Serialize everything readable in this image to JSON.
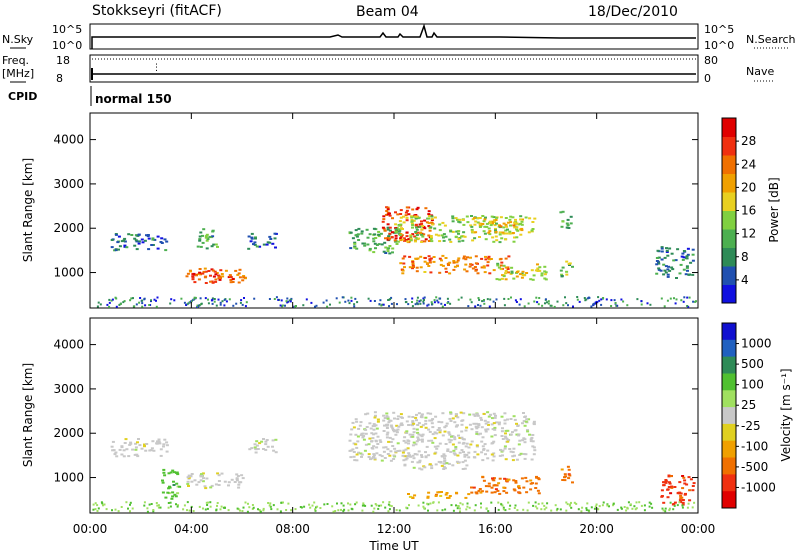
{
  "header": {
    "station": "Stokkseyri (fitACF)",
    "beam": "Beam 04",
    "date": "18/Dec/2010"
  },
  "strip": {
    "nsky_label": "N.Sky",
    "nsky_ticks": [
      "10^5",
      "10^0"
    ],
    "nsearch_label": "N.Search",
    "nsearch_ticks": [
      "10^5",
      "10^0"
    ],
    "freq_label_1": "Freq.",
    "freq_label_2": "[MHz]",
    "freq_ticks": [
      "18",
      "8"
    ],
    "nave_label": "Nave",
    "nave_ticks": [
      "80",
      "0"
    ],
    "cpid_label": "CPID",
    "cpid_value": "normal 150"
  },
  "colors": {
    "power_scale": [
      "#1010e0",
      "#2050b0",
      "#2e8b57",
      "#4caf50",
      "#80d040",
      "#e8d020",
      "#f0a000",
      "#f07000",
      "#f03010",
      "#e00000"
    ],
    "velocity_scale": [
      "#1010d0",
      "#2060c0",
      "#2e8b57",
      "#50c030",
      "#a0e060",
      "#c8c8c8",
      "#e0d020",
      "#f0a000",
      "#f07000",
      "#f03010",
      "#e00000"
    ]
  },
  "chart_data": [
    {
      "type": "heatmap",
      "panel": "power",
      "ylabel": "Slant Range [km]",
      "yticks": [
        "1000",
        "2000",
        "3000",
        "4000"
      ],
      "ylim": [
        200,
        4600
      ],
      "colorbar_label": "Power [dB]",
      "colorbar_ticks": [
        "4",
        "8",
        "12",
        "16",
        "20",
        "24",
        "28"
      ],
      "colorbar_range": [
        0,
        31
      ],
      "blobs": [
        {
          "t0": 0.8,
          "t1": 3.0,
          "r0": 1500,
          "r1": 1900,
          "v": 5
        },
        {
          "t0": 3.7,
          "t1": 6.1,
          "r0": 780,
          "r1": 1120,
          "v": 25
        },
        {
          "t0": 4.0,
          "t1": 5.6,
          "r0": 850,
          "r1": 1020,
          "v": 30
        },
        {
          "t0": 4.2,
          "t1": 5.0,
          "r0": 1500,
          "r1": 2000,
          "v": 10
        },
        {
          "t0": 6.2,
          "t1": 7.3,
          "r0": 1550,
          "r1": 1900,
          "v": 4
        },
        {
          "t0": 10.2,
          "t1": 12.2,
          "r0": 1450,
          "r1": 2050,
          "v": 10
        },
        {
          "t0": 11.5,
          "t1": 13.5,
          "r0": 1700,
          "r1": 2500,
          "v": 28
        },
        {
          "t0": 12.2,
          "t1": 16.5,
          "r0": 1000,
          "r1": 1400,
          "v": 24
        },
        {
          "t0": 12.0,
          "t1": 17.0,
          "r0": 1700,
          "r1": 2300,
          "v": 14
        },
        {
          "t0": 15.0,
          "t1": 17.5,
          "r0": 1900,
          "r1": 2300,
          "v": 18
        },
        {
          "t0": 16.0,
          "t1": 18.0,
          "r0": 850,
          "r1": 1250,
          "v": 16
        },
        {
          "t0": 18.5,
          "t1": 19.0,
          "r0": 2000,
          "r1": 2400,
          "v": 10
        },
        {
          "t0": 18.5,
          "t1": 19.0,
          "r0": 900,
          "r1": 1300,
          "v": 12
        },
        {
          "t0": 22.3,
          "t1": 23.8,
          "r0": 900,
          "r1": 1600,
          "v": 6
        }
      ]
    },
    {
      "type": "heatmap",
      "panel": "velocity",
      "ylabel": "Slant Range [km]",
      "yticks": [
        "1000",
        "2000",
        "3000",
        "4000"
      ],
      "ylim": [
        200,
        4600
      ],
      "colorbar_label": "Velocity [m s⁻¹]",
      "colorbar_ticks": [
        "1000",
        "500",
        "100",
        "25",
        "-25",
        "-100",
        "-500",
        "-1000"
      ],
      "xlabel": "Time UT",
      "xticks": [
        "00:00",
        "04:00",
        "08:00",
        "12:00",
        "16:00",
        "20:00",
        "00:00"
      ],
      "xlim": [
        0,
        24
      ],
      "blobs": [
        {
          "t0": 0.8,
          "t1": 3.0,
          "r0": 1500,
          "r1": 1900,
          "c": 5
        },
        {
          "t0": 3.7,
          "t1": 6.1,
          "r0": 780,
          "r1": 1120,
          "c": 5
        },
        {
          "t0": 2.8,
          "t1": 3.5,
          "r0": 500,
          "r1": 1200,
          "c": 3
        },
        {
          "t0": 6.2,
          "t1": 7.3,
          "r0": 1550,
          "r1": 1900,
          "c": 5
        },
        {
          "t0": 10.2,
          "t1": 17.5,
          "r0": 1400,
          "r1": 2500,
          "c": 5
        },
        {
          "t0": 12.2,
          "t1": 15.0,
          "r0": 1200,
          "r1": 1400,
          "c": 5
        },
        {
          "t0": 15.0,
          "t1": 17.8,
          "r0": 650,
          "r1": 1050,
          "c": 8
        },
        {
          "t0": 12.5,
          "t1": 15.0,
          "r0": 550,
          "r1": 700,
          "c": 7
        },
        {
          "t0": 18.5,
          "t1": 19.0,
          "r0": 900,
          "r1": 1300,
          "c": 8
        },
        {
          "t0": 22.5,
          "t1": 23.8,
          "r0": 400,
          "r1": 1100,
          "c": 9
        }
      ]
    }
  ]
}
